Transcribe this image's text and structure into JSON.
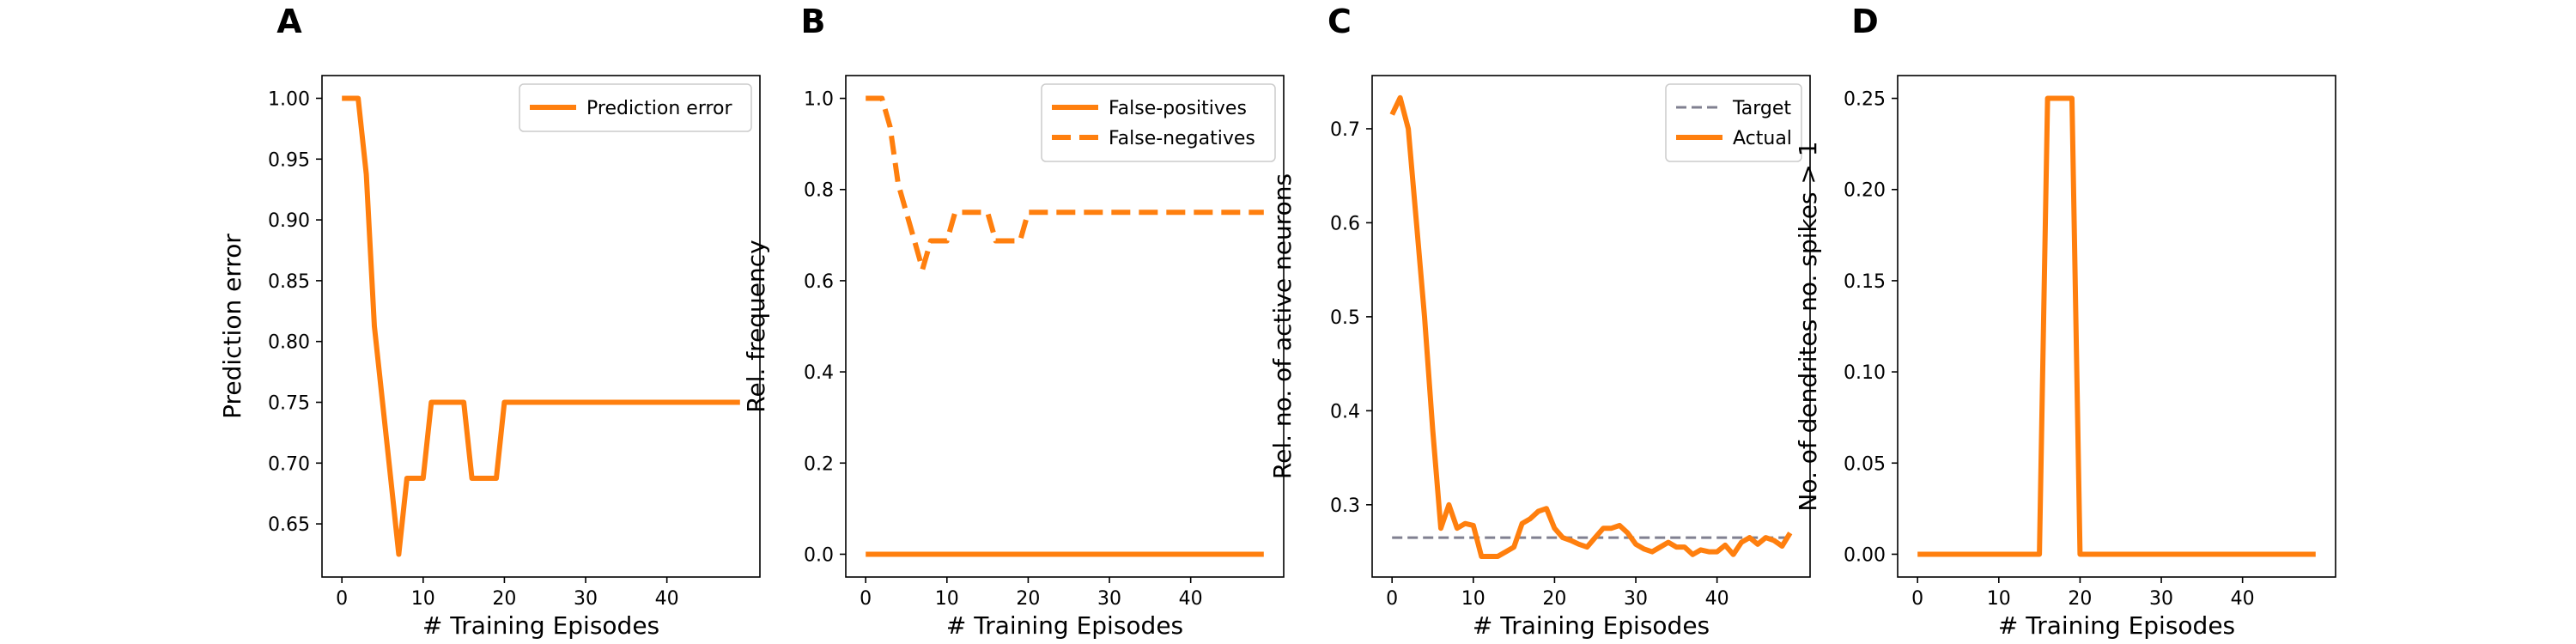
{
  "chart_data": [
    {
      "type": "line",
      "panel_label": "A",
      "xlabel": "# Training Episodes",
      "ylabel": "Prediction error",
      "xlim": [
        -2.45,
        51.45
      ],
      "ylim": [
        0.6063,
        1.0187
      ],
      "xticks": [
        0,
        10,
        20,
        30,
        40
      ],
      "xtick_labels": [
        "0",
        "10",
        "20",
        "30",
        "40"
      ],
      "yticks": [
        0.65,
        0.7,
        0.75,
        0.8,
        0.85,
        0.9,
        0.95,
        1.0
      ],
      "ytick_labels": [
        "0.65",
        "0.70",
        "0.75",
        "0.80",
        "0.85",
        "0.90",
        "0.95",
        "1.00"
      ],
      "legend_position": "upper-right",
      "series": [
        {
          "name": "Prediction error",
          "style": "solid",
          "color": "#ff7f0e",
          "x": [
            0,
            1,
            2,
            3,
            4,
            5,
            6,
            7,
            8,
            9,
            10,
            11,
            12,
            13,
            14,
            15,
            16,
            17,
            18,
            19,
            20,
            21,
            22,
            23,
            24,
            25,
            26,
            27,
            28,
            29,
            30,
            31,
            32,
            33,
            34,
            35,
            36,
            37,
            38,
            39,
            40,
            41,
            42,
            43,
            44,
            45,
            46,
            47,
            48,
            49
          ],
          "y": [
            1.0,
            1.0,
            1.0,
            0.9375,
            0.8125,
            0.75,
            0.6875,
            0.625,
            0.6875,
            0.6875,
            0.6875,
            0.75,
            0.75,
            0.75,
            0.75,
            0.75,
            0.6875,
            0.6875,
            0.6875,
            0.6875,
            0.75,
            0.75,
            0.75,
            0.75,
            0.75,
            0.75,
            0.75,
            0.75,
            0.75,
            0.75,
            0.75,
            0.75,
            0.75,
            0.75,
            0.75,
            0.75,
            0.75,
            0.75,
            0.75,
            0.75,
            0.75,
            0.75,
            0.75,
            0.75,
            0.75,
            0.75,
            0.75,
            0.75,
            0.75,
            0.75
          ]
        }
      ]
    },
    {
      "type": "line",
      "panel_label": "B",
      "xlabel": "# Training Episodes",
      "ylabel": "Rel. frequency",
      "xlim": [
        -2.45,
        51.45
      ],
      "ylim": [
        -0.05,
        1.05
      ],
      "xticks": [
        0,
        10,
        20,
        30,
        40
      ],
      "xtick_labels": [
        "0",
        "10",
        "20",
        "30",
        "40"
      ],
      "yticks": [
        0.0,
        0.2,
        0.4,
        0.6,
        0.8,
        1.0
      ],
      "ytick_labels": [
        "0.0",
        "0.2",
        "0.4",
        "0.6",
        "0.8",
        "1.0"
      ],
      "legend_position": "upper-right",
      "series": [
        {
          "name": "False-positives",
          "style": "solid",
          "color": "#ff7f0e",
          "x": [
            0,
            1,
            2,
            3,
            4,
            5,
            6,
            7,
            8,
            9,
            10,
            11,
            12,
            13,
            14,
            15,
            16,
            17,
            18,
            19,
            20,
            21,
            22,
            23,
            24,
            25,
            26,
            27,
            28,
            29,
            30,
            31,
            32,
            33,
            34,
            35,
            36,
            37,
            38,
            39,
            40,
            41,
            42,
            43,
            44,
            45,
            46,
            47,
            48,
            49
          ],
          "y": [
            0,
            0,
            0,
            0,
            0,
            0,
            0,
            0,
            0,
            0,
            0,
            0,
            0,
            0,
            0,
            0,
            0,
            0,
            0,
            0,
            0,
            0,
            0,
            0,
            0,
            0,
            0,
            0,
            0,
            0,
            0,
            0,
            0,
            0,
            0,
            0,
            0,
            0,
            0,
            0,
            0,
            0,
            0,
            0,
            0,
            0,
            0,
            0,
            0,
            0
          ]
        },
        {
          "name": "False-negatives",
          "style": "dashed",
          "color": "#ff7f0e",
          "x": [
            0,
            1,
            2,
            3,
            4,
            5,
            6,
            7,
            8,
            9,
            10,
            11,
            12,
            13,
            14,
            15,
            16,
            17,
            18,
            19,
            20,
            21,
            22,
            23,
            24,
            25,
            26,
            27,
            28,
            29,
            30,
            31,
            32,
            33,
            34,
            35,
            36,
            37,
            38,
            39,
            40,
            41,
            42,
            43,
            44,
            45,
            46,
            47,
            48,
            49
          ],
          "y": [
            1.0,
            1.0,
            1.0,
            0.9375,
            0.8125,
            0.75,
            0.6875,
            0.625,
            0.6875,
            0.6875,
            0.6875,
            0.75,
            0.75,
            0.75,
            0.75,
            0.75,
            0.6875,
            0.6875,
            0.6875,
            0.6875,
            0.75,
            0.75,
            0.75,
            0.75,
            0.75,
            0.75,
            0.75,
            0.75,
            0.75,
            0.75,
            0.75,
            0.75,
            0.75,
            0.75,
            0.75,
            0.75,
            0.75,
            0.75,
            0.75,
            0.75,
            0.75,
            0.75,
            0.75,
            0.75,
            0.75,
            0.75,
            0.75,
            0.75,
            0.75,
            0.75
          ]
        }
      ]
    },
    {
      "type": "line",
      "panel_label": "C",
      "xlabel": "# Training Episodes",
      "ylabel": "Rel. no. of active neurons",
      "xlim": [
        -2.45,
        51.45
      ],
      "ylim": [
        0.2231,
        0.7566
      ],
      "xticks": [
        0,
        10,
        20,
        30,
        40
      ],
      "xtick_labels": [
        "0",
        "10",
        "20",
        "30",
        "40"
      ],
      "yticks": [
        0.3,
        0.4,
        0.5,
        0.6,
        0.7
      ],
      "ytick_labels": [
        "0.3",
        "0.4",
        "0.5",
        "0.6",
        "0.7"
      ],
      "legend_position": "upper-right",
      "series": [
        {
          "name": "Target",
          "style": "dashed",
          "color": "#808090",
          "x": [
            0,
            49
          ],
          "y": [
            0.265,
            0.265
          ]
        },
        {
          "name": "Actual",
          "style": "solid",
          "color": "#ff7f0e",
          "x": [
            0,
            1,
            2,
            3,
            4,
            5,
            6,
            7,
            8,
            9,
            10,
            11,
            12,
            13,
            14,
            15,
            16,
            17,
            18,
            19,
            20,
            21,
            22,
            23,
            24,
            25,
            26,
            27,
            28,
            29,
            30,
            31,
            32,
            33,
            34,
            35,
            36,
            37,
            38,
            39,
            40,
            41,
            42,
            43,
            44,
            45,
            46,
            47,
            48,
            49
          ],
          "y": [
            0.715,
            0.733,
            0.7,
            0.6,
            0.5,
            0.38,
            0.275,
            0.3,
            0.275,
            0.28,
            0.278,
            0.245,
            0.245,
            0.245,
            0.25,
            0.255,
            0.28,
            0.285,
            0.293,
            0.296,
            0.275,
            0.265,
            0.262,
            0.258,
            0.255,
            0.265,
            0.275,
            0.275,
            0.278,
            0.27,
            0.258,
            0.253,
            0.25,
            0.255,
            0.26,
            0.255,
            0.255,
            0.247,
            0.252,
            0.25,
            0.25,
            0.257,
            0.247,
            0.26,
            0.265,
            0.258,
            0.265,
            0.262,
            0.256,
            0.27
          ]
        }
      ]
    },
    {
      "type": "line",
      "panel_label": "D",
      "xlabel": "# Training Episodes",
      "ylabel": "No. of dendrites no. spikes > 1",
      "xlim": [
        -2.45,
        51.45
      ],
      "ylim": [
        -0.0125,
        0.2625
      ],
      "xticks": [
        0,
        10,
        20,
        30,
        40
      ],
      "xtick_labels": [
        "0",
        "10",
        "20",
        "30",
        "40"
      ],
      "yticks": [
        0.0,
        0.05,
        0.1,
        0.15,
        0.2,
        0.25
      ],
      "ytick_labels": [
        "0.00",
        "0.05",
        "0.10",
        "0.15",
        "0.20",
        "0.25"
      ],
      "legend_position": "none",
      "series": [
        {
          "style": "solid",
          "color": "#ff7f0e",
          "x": [
            0,
            1,
            2,
            3,
            4,
            5,
            6,
            7,
            8,
            9,
            10,
            11,
            12,
            13,
            14,
            15,
            16,
            17,
            18,
            19,
            20,
            21,
            22,
            23,
            24,
            25,
            26,
            27,
            28,
            29,
            30,
            31,
            32,
            33,
            34,
            35,
            36,
            37,
            38,
            39,
            40,
            41,
            42,
            43,
            44,
            45,
            46,
            47,
            48,
            49
          ],
          "y": [
            0,
            0,
            0,
            0,
            0,
            0,
            0,
            0,
            0,
            0,
            0,
            0,
            0,
            0,
            0,
            0,
            0.25,
            0.25,
            0.25,
            0.25,
            0,
            0,
            0,
            0,
            0,
            0,
            0,
            0,
            0,
            0,
            0,
            0,
            0,
            0,
            0,
            0,
            0,
            0,
            0,
            0,
            0,
            0,
            0,
            0,
            0,
            0,
            0,
            0,
            0,
            0
          ]
        }
      ]
    }
  ]
}
